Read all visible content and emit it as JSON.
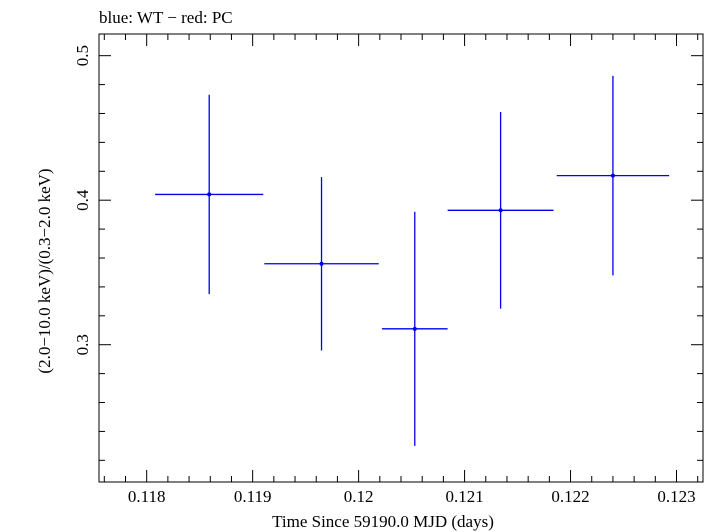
{
  "chart_data": {
    "type": "scatter",
    "title": "blue: WT − red: PC",
    "xlabel": "Time Since 59190.0 MJD (days)",
    "ylabel": "(2.0−10.0 keV)/(0.3−2.0 keV)",
    "xlim": [
      0.11755,
      0.12325
    ],
    "ylim": [
      0.205,
      0.515
    ],
    "x_ticks": [
      0.118,
      0.119,
      0.12,
      0.121,
      0.122,
      0.123
    ],
    "x_tick_labels": [
      "0.118",
      "0.119",
      "0.12",
      "0.121",
      "0.122",
      "0.123"
    ],
    "y_ticks": [
      0.3,
      0.4,
      0.5
    ],
    "y_tick_labels": [
      "0.3",
      "0.4",
      "0.5"
    ],
    "series": [
      {
        "name": "WT",
        "color": "#0000ee",
        "points": [
          {
            "x": 0.11859,
            "y": 0.404,
            "xerr": 0.00051,
            "yerr_low": 0.069,
            "yerr_high": 0.069
          },
          {
            "x": 0.11965,
            "y": 0.356,
            "xerr": 0.00054,
            "yerr_low": 0.06,
            "yerr_high": 0.06
          },
          {
            "x": 0.12053,
            "y": 0.311,
            "xerr": 0.00031,
            "yerr_low": 0.081,
            "yerr_high": 0.081
          },
          {
            "x": 0.12134,
            "y": 0.393,
            "xerr": 0.0005,
            "yerr_low": 0.068,
            "yerr_high": 0.068
          },
          {
            "x": 0.1224,
            "y": 0.417,
            "xerr": 0.00053,
            "yerr_low": 0.069,
            "yerr_high": 0.069
          }
        ]
      }
    ]
  }
}
